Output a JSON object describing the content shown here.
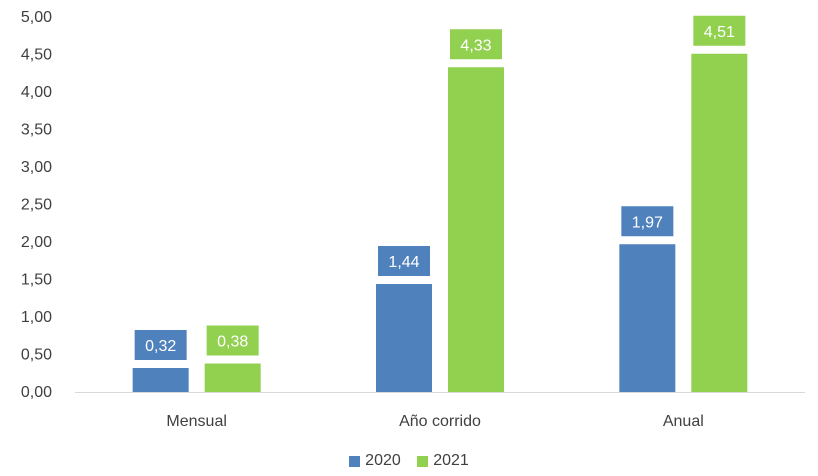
{
  "chart_data": {
    "type": "bar",
    "categories": [
      "Mensual",
      "Año corrido",
      "Anual"
    ],
    "series": [
      {
        "name": "2020",
        "values": [
          0.32,
          1.44,
          1.97
        ],
        "labels": [
          "0,32",
          "1,44",
          "1,97"
        ],
        "color": "#4F81BD"
      },
      {
        "name": "2021",
        "values": [
          0.38,
          4.33,
          4.51
        ],
        "labels": [
          "0,38",
          "4,33",
          "4,51"
        ],
        "color": "#92D050"
      }
    ],
    "ylim": [
      0,
      5
    ],
    "yticks": [
      "0,00",
      "0,50",
      "1,00",
      "1,50",
      "2,00",
      "2,50",
      "3,00",
      "3,50",
      "4,00",
      "4,50",
      "5,00"
    ],
    "ytick_values": [
      0,
      0.5,
      1,
      1.5,
      2,
      2.5,
      3,
      3.5,
      4,
      4.5,
      5
    ],
    "grid": false,
    "legend": "bottom-center",
    "title": "",
    "xlabel": "",
    "ylabel": ""
  }
}
